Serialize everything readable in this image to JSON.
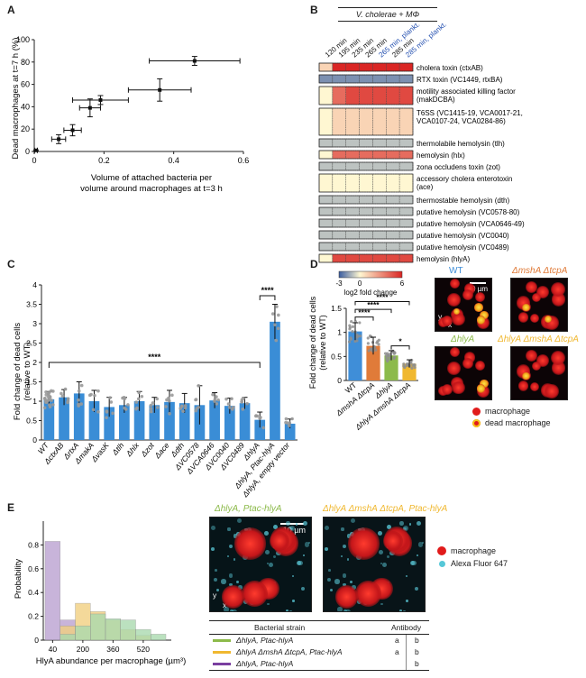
{
  "panels": {
    "A": "A",
    "B": "B",
    "C": "C",
    "D": "D",
    "E": "E"
  },
  "panelA": {
    "chart_data": {
      "type": "scatter",
      "ylabel": "Dead macrophages at t=7 h (%)",
      "xlabel_line1": "Volume of attached bacteria per",
      "xlabel_line2": "volume around macrophages at t=3 h",
      "xlim": [
        0,
        0.6
      ],
      "ylim": [
        0,
        100
      ],
      "xticks": [
        "0",
        "0.2",
        "0.4",
        "0.6"
      ],
      "yticks": [
        "0",
        "20",
        "40",
        "60",
        "80",
        "100"
      ],
      "points": [
        {
          "x": 0.005,
          "y": 1,
          "xerr": 0.004,
          "yerr": 0.5
        },
        {
          "x": 0.07,
          "y": 11,
          "xerr": 0.02,
          "yerr": 4
        },
        {
          "x": 0.11,
          "y": 19,
          "xerr": 0.025,
          "yerr": 5
        },
        {
          "x": 0.16,
          "y": 39,
          "xerr": 0.03,
          "yerr": 8
        },
        {
          "x": 0.19,
          "y": 46,
          "xerr": 0.08,
          "yerr": 4
        },
        {
          "x": 0.36,
          "y": 55,
          "xerr": 0.09,
          "yerr": 10
        },
        {
          "x": 0.46,
          "y": 81,
          "xerr": 0.13,
          "yerr": 4
        }
      ]
    }
  },
  "panelB": {
    "chart_data": {
      "type": "heatmap",
      "title": "V. cholerae + MΦ",
      "columns": [
        "120 min",
        "195 min",
        "235 min",
        "265 min",
        "265 min, plankt.",
        "285 min",
        "285 min, plankt."
      ],
      "rows": [
        {
          "label": "cholera toxin (ctxAB)",
          "values": [
            1,
            6,
            6,
            6,
            6,
            6,
            6
          ]
        },
        {
          "label": "RTX toxin (VC1449, rtxBA)",
          "values": [
            -2,
            -2,
            -2,
            -2,
            -2,
            -2,
            -2
          ]
        },
        {
          "label": "motility associated killing factor (makDCBA)",
          "values": [
            0,
            4,
            5,
            5,
            5,
            5,
            5
          ]
        },
        {
          "label": "T6SS (VC1415-19, VCA0017-21, VCA0107-24, VCA0284-86)",
          "values": [
            0,
            1,
            1,
            1,
            1,
            1,
            1
          ]
        },
        {
          "label": "thermolabile hemolysin (tlh)",
          "values": [
            -1,
            -1,
            -1,
            -1,
            -1,
            -1,
            -1
          ]
        },
        {
          "label": "hemolysin (hlx)",
          "values": [
            0,
            4,
            4,
            4,
            4,
            4,
            4
          ]
        },
        {
          "label": "zona occludens toxin (zot)",
          "values": [
            -1,
            -1,
            -1,
            -1,
            -1,
            -1,
            -1
          ]
        },
        {
          "label": "accessory cholera enterotoxin (ace)",
          "values": [
            0,
            0,
            0,
            0,
            0,
            0,
            0
          ]
        },
        {
          "label": "thermostable hemolysin (dth)",
          "values": [
            -1,
            -1,
            -1,
            -1,
            -1,
            -1,
            -1
          ]
        },
        {
          "label": "putative hemolysin (VC0578-80)",
          "values": [
            -1,
            -1,
            -1,
            -1,
            -1,
            -1,
            -1
          ]
        },
        {
          "label": "putative hemolysin (VCA0646-49)",
          "values": [
            -1,
            -1,
            -1,
            -1,
            -1,
            -1,
            -1
          ]
        },
        {
          "label": "putative hemolysin (VC0040)",
          "values": [
            -1,
            -1,
            -1,
            -1,
            -1,
            -1,
            -1
          ]
        },
        {
          "label": "putative hemolysin (VC0489)",
          "values": [
            -1,
            -1,
            -1,
            -1,
            -1,
            -1,
            -1
          ]
        },
        {
          "label": "hemolysin (hlyA)",
          "values": [
            0,
            5,
            5,
            5,
            5,
            5,
            5
          ]
        }
      ],
      "scale_ticks": [
        "-3",
        "0",
        "6"
      ],
      "scale_label": "log2 fold change"
    }
  },
  "panelC": {
    "chart_data": {
      "type": "bar",
      "ylabel_line1": "Fold change of dead cells",
      "ylabel_line2": "(relative to WT)",
      "ylim": [
        0,
        4
      ],
      "yticks": [
        "0",
        "0.5",
        "1",
        "1.5",
        "2",
        "2.5",
        "3",
        "3.5",
        "4"
      ],
      "categories": [
        "WT",
        "ΔctxAB",
        "ΔrtxA",
        "ΔmakA",
        "ΔvasK",
        "Δtlh",
        "Δhlx",
        "Δzot",
        "Δace",
        "Δdth",
        "ΔVC0578",
        "ΔVCA0646",
        "ΔVC0040",
        "ΔVC0489",
        "ΔhlyA",
        "ΔhlyA, Ptac-hlyA",
        "ΔhlyA, empty vector"
      ],
      "values": [
        1.05,
        1.1,
        1.2,
        1.0,
        0.85,
        0.9,
        1.0,
        0.9,
        0.98,
        0.95,
        0.9,
        1.02,
        0.88,
        0.95,
        0.52,
        3.05,
        0.42
      ],
      "errors": [
        0.2,
        0.2,
        0.3,
        0.28,
        0.25,
        0.2,
        0.25,
        0.2,
        0.3,
        0.25,
        0.5,
        0.2,
        0.2,
        0.15,
        0.2,
        0.45,
        0.12
      ],
      "sig1": "****",
      "sig2": "****"
    }
  },
  "panelD": {
    "chart_data": {
      "type": "bar",
      "ylabel_line1": "Fold change of dead cells",
      "ylabel_line2": "(relative to WT)",
      "ylim": [
        0,
        1.5
      ],
      "yticks": [
        "0",
        "0.5",
        "1",
        "1.5"
      ],
      "categories": [
        "WT",
        "ΔmshA ΔtcpA",
        "ΔhlyA",
        "ΔhlyA ΔmshA ΔtcpA"
      ],
      "values": [
        1.02,
        0.72,
        0.52,
        0.35
      ],
      "errors": [
        0.18,
        0.18,
        0.1,
        0.08
      ],
      "colors": [
        "#3f8ed8",
        "#e07b39",
        "#8cba4a",
        "#f0b830"
      ],
      "sig_labels": [
        "****",
        "****",
        "****",
        "*"
      ]
    },
    "micro_labels": {
      "wt": "WT",
      "msh": "ΔmshA ΔtcpA",
      "hly": "ΔhlyA",
      "triple": "ΔhlyA ΔmshA ΔtcpA"
    },
    "scalebar": "20 µm",
    "axis_y": "y",
    "axis_x": "x",
    "legend": {
      "macrophage": "macrophage",
      "dead": "dead macrophage"
    }
  },
  "panelE": {
    "chart_data": {
      "type": "bar",
      "ylabel": "Probability",
      "xlabel": "HlyA abundance per macrophage (µm³)",
      "ylim": [
        0,
        1
      ],
      "yticks": [
        "0",
        "0.2",
        "0.4",
        "0.6",
        "0.8"
      ],
      "xticks": [
        "40",
        "200",
        "360",
        "520"
      ],
      "series": [
        {
          "color": "#b9a0d0",
          "values": [
            0.83,
            0.17,
            0,
            0,
            0,
            0,
            0,
            0
          ]
        },
        {
          "color": "#f2cf7e",
          "values": [
            0,
            0.12,
            0.31,
            0.24,
            0.17,
            0.09,
            0.04,
            0
          ]
        },
        {
          "color": "#a9d9ae",
          "values": [
            0,
            0.05,
            0.12,
            0.22,
            0.18,
            0.17,
            0.09,
            0.05
          ]
        }
      ]
    },
    "micro_labels": {
      "left": "ΔhlyA, Ptac-hlyA",
      "right": "ΔhlyA ΔmshA ΔtcpA, Ptac-hlyA"
    },
    "scalebar": "10 µm",
    "axis_y": "y",
    "axis_x": "x",
    "legend": {
      "macrophage": "macrophage",
      "dye": "Alexa Fluor 647"
    },
    "table": {
      "headers": [
        "Bacterial strain",
        "Antibody"
      ],
      "rows": [
        {
          "color": "#8cba4a",
          "strain": "ΔhlyA, Ptac-hlyA",
          "a": "a",
          "b": "b"
        },
        {
          "color": "#f0b830",
          "strain": "ΔhlyA ΔmshA ΔtcpA, Ptac-hlyA",
          "a": "a",
          "b": "b"
        },
        {
          "color": "#7a3fa0",
          "strain": "ΔhlyA, Ptac-hlyA",
          "a": "",
          "b": "b"
        }
      ]
    }
  }
}
